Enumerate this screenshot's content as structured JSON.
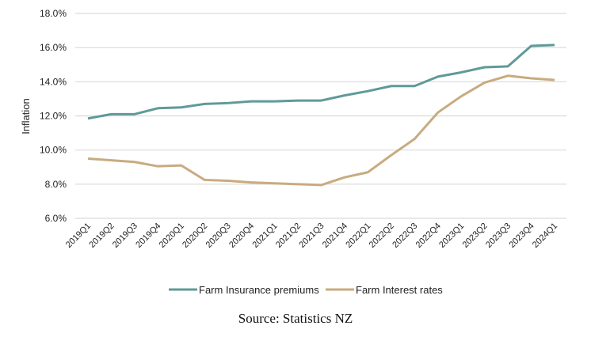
{
  "chart_data": {
    "type": "line",
    "title": "",
    "xlabel": "",
    "ylabel": "Inflation",
    "ylim": [
      6,
      18
    ],
    "yticks": [
      "6.0%",
      "8.0%",
      "10.0%",
      "12.0%",
      "14.0%",
      "16.0%",
      "18.0%"
    ],
    "grid": true,
    "legend_placement": "bottom",
    "categories": [
      "2019Q1",
      "2019Q2",
      "2019Q3",
      "2019Q4",
      "2020Q1",
      "2020Q2",
      "2020Q3",
      "2020Q4",
      "2021Q1",
      "2021Q2",
      "2021Q3",
      "2021Q4",
      "2022Q1",
      "2022Q2",
      "2022Q3",
      "2022Q4",
      "2023Q1",
      "2023Q2",
      "2023Q3",
      "2023Q4",
      "2024Q1"
    ],
    "series": [
      {
        "name": "Farm Insurance premiums",
        "color": "#5f9a98",
        "values": [
          11.85,
          12.1,
          12.1,
          12.45,
          12.5,
          12.7,
          12.75,
          12.85,
          12.85,
          12.9,
          12.9,
          13.2,
          13.45,
          13.75,
          13.75,
          14.3,
          14.55,
          14.85,
          14.9,
          16.1,
          16.15
        ]
      },
      {
        "name": "Farm Interest rates",
        "color": "#c8ab7f",
        "values": [
          9.5,
          9.4,
          9.3,
          9.05,
          9.1,
          8.25,
          8.2,
          8.1,
          8.05,
          8.0,
          7.95,
          8.4,
          8.7,
          9.7,
          10.65,
          12.2,
          13.15,
          13.95,
          14.35,
          14.2,
          14.1
        ]
      }
    ]
  },
  "source": "Source: Statistics NZ"
}
